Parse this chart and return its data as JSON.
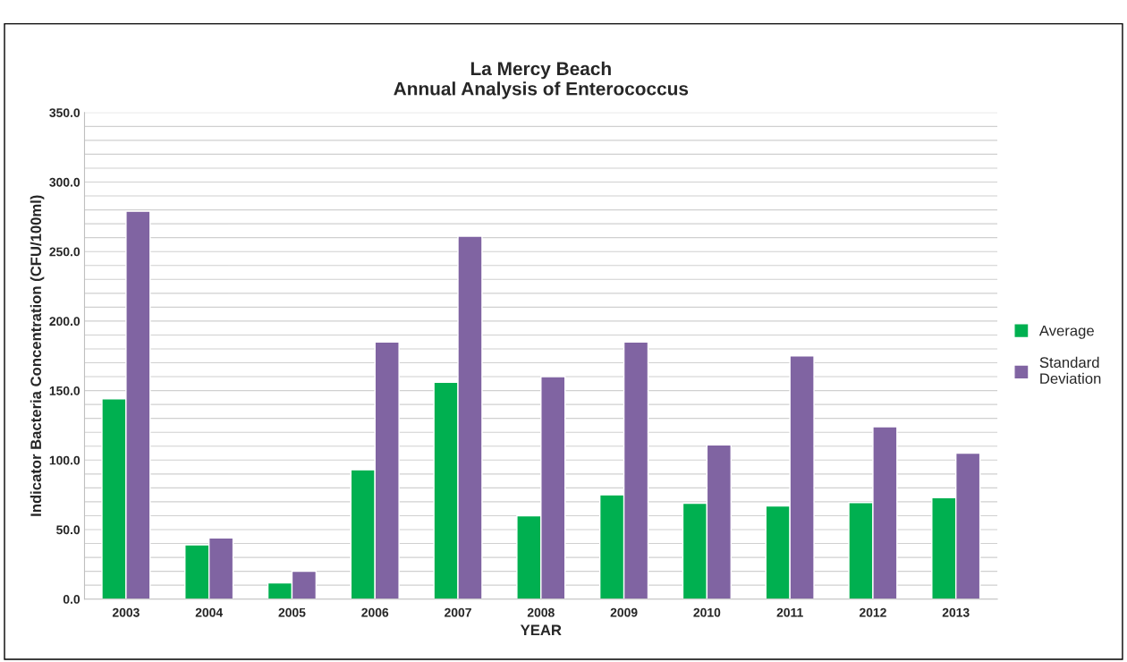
{
  "chart_data": {
    "type": "bar",
    "title": "La Mercy Beach\nAnnual Analysis of Enterococcus",
    "xlabel": "YEAR",
    "ylabel": "Indicator Bacteria Concentration (CFU/100ml)",
    "categories": [
      "2003",
      "2004",
      "2005",
      "2006",
      "2007",
      "2008",
      "2009",
      "2010",
      "2011",
      "2012",
      "2013"
    ],
    "series": [
      {
        "name": "Average",
        "color": "#00b050",
        "values": [
          144,
          39,
          11.6,
          93,
          156,
          60,
          75,
          69,
          67,
          69.5,
          73
        ]
      },
      {
        "name": "Standard\nDeviation",
        "color": "#8064a2",
        "values": [
          279,
          44,
          20,
          185,
          261,
          160,
          185,
          111,
          175,
          124,
          105
        ]
      }
    ],
    "ylim": [
      0,
      350
    ],
    "yticks": [
      {
        "value": 0,
        "label": "0.0"
      },
      {
        "value": 10,
        "label": null
      },
      {
        "value": 20,
        "label": null
      },
      {
        "value": 30,
        "label": null
      },
      {
        "value": 40,
        "label": null
      },
      {
        "value": 50,
        "label": "50.0"
      },
      {
        "value": 60,
        "label": null
      },
      {
        "value": 70,
        "label": null
      },
      {
        "value": 80,
        "label": null
      },
      {
        "value": 90,
        "label": null
      },
      {
        "value": 100,
        "label": "100.0"
      },
      {
        "value": 110,
        "label": null
      },
      {
        "value": 120,
        "label": null
      },
      {
        "value": 130,
        "label": null
      },
      {
        "value": 140,
        "label": null
      },
      {
        "value": 150,
        "label": "150.0"
      },
      {
        "value": 160,
        "label": null
      },
      {
        "value": 170,
        "label": null
      },
      {
        "value": 180,
        "label": null
      },
      {
        "value": 190,
        "label": null
      },
      {
        "value": 200,
        "label": "200.0"
      },
      {
        "value": 210,
        "label": null
      },
      {
        "value": 220,
        "label": null
      },
      {
        "value": 230,
        "label": null
      },
      {
        "value": 240,
        "label": null
      },
      {
        "value": 250,
        "label": "250.0"
      },
      {
        "value": 260,
        "label": null
      },
      {
        "value": 270,
        "label": null
      },
      {
        "value": 280,
        "label": null
      },
      {
        "value": 290,
        "label": null
      },
      {
        "value": 300,
        "label": "300.0"
      },
      {
        "value": 310,
        "label": null
      },
      {
        "value": 320,
        "label": null
      },
      {
        "value": 330,
        "label": null
      },
      {
        "value": 340,
        "label": null
      },
      {
        "value": 350,
        "label": "350.0"
      }
    ],
    "grid": "y",
    "legend": "right"
  }
}
